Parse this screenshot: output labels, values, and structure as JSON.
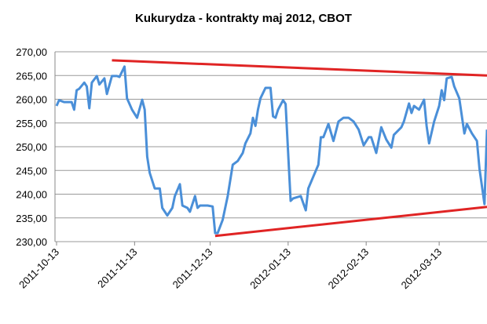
{
  "chart_data": {
    "type": "line",
    "title": "Kukurydza - kontrakty maj 2012, CBOT",
    "x": [
      "2011-10-13",
      "2011-10-14",
      "2011-10-16",
      "2011-10-19",
      "2011-10-20",
      "2011-10-21",
      "2011-10-22",
      "2011-10-24",
      "2011-10-25",
      "2011-10-26",
      "2011-10-27",
      "2011-10-29",
      "2011-10-30",
      "2011-11-01",
      "2011-11-02",
      "2011-11-04",
      "2011-11-06",
      "2011-11-07",
      "2011-11-09",
      "2011-11-10",
      "2011-11-12",
      "2011-11-14",
      "2011-11-16",
      "2011-11-17",
      "2011-11-18",
      "2011-11-19",
      "2011-11-21",
      "2011-11-23",
      "2011-11-24",
      "2011-11-26",
      "2011-11-28",
      "2011-11-29",
      "2011-12-01",
      "2011-12-02",
      "2011-12-04",
      "2011-12-05",
      "2011-12-07",
      "2011-12-08",
      "2011-12-09",
      "2011-12-11",
      "2011-12-12",
      "2011-12-14",
      "2011-12-15",
      "2011-12-16",
      "2011-12-18",
      "2011-12-20",
      "2011-12-22",
      "2011-12-24",
      "2011-12-26",
      "2011-12-27",
      "2011-12-29",
      "2011-12-30",
      "2011-12-31",
      "2012-01-01",
      "2012-01-02",
      "2012-01-04",
      "2012-01-06",
      "2012-01-07",
      "2012-01-08",
      "2012-01-09",
      "2012-01-11",
      "2012-01-12",
      "2012-01-14",
      "2012-01-15",
      "2012-01-18",
      "2012-01-20",
      "2012-01-21",
      "2012-01-23",
      "2012-01-25",
      "2012-01-26",
      "2012-01-27",
      "2012-01-29",
      "2012-01-31",
      "2012-02-02",
      "2012-02-04",
      "2012-02-06",
      "2012-02-08",
      "2012-02-10",
      "2012-02-12",
      "2012-02-14",
      "2012-02-15",
      "2012-02-17",
      "2012-02-19",
      "2012-02-21",
      "2012-02-23",
      "2012-02-24",
      "2012-02-27",
      "2012-02-28",
      "2012-03-01",
      "2012-03-02",
      "2012-03-03",
      "2012-03-05",
      "2012-03-07",
      "2012-03-08",
      "2012-03-09",
      "2012-03-11",
      "2012-03-13",
      "2012-03-14",
      "2012-03-15",
      "2012-03-16",
      "2012-03-18",
      "2012-03-19",
      "2012-03-21",
      "2012-03-23",
      "2012-03-24",
      "2012-03-26",
      "2012-03-28",
      "2012-03-29",
      "2012-03-31",
      "2012-04-01"
    ],
    "series": [
      {
        "color": "#4a8fd8",
        "values": [
          258.6,
          259.8,
          259.4,
          259.4,
          257.8,
          261.9,
          262.2,
          263.5,
          262.7,
          258.1,
          263.5,
          264.9,
          263.1,
          264.4,
          261.1,
          264.9,
          264.9,
          264.7,
          266.9,
          260.2,
          257.8,
          256.1,
          259.9,
          257.8,
          247.9,
          244.5,
          241.2,
          241.2,
          237.1,
          235.5,
          237.1,
          239.6,
          242.1,
          237.6,
          237.1,
          236.3,
          239.6,
          237.1,
          237.6,
          237.6,
          237.6,
          237.4,
          231.8,
          231.8,
          234.6,
          239.6,
          246.2,
          247.0,
          248.7,
          250.7,
          252.8,
          256.1,
          254.4,
          257.8,
          260.2,
          262.4,
          262.4,
          256.4,
          256.1,
          257.8,
          259.8,
          259.0,
          238.6,
          239.1,
          239.6,
          236.6,
          241.2,
          243.7,
          246.2,
          252.0,
          252.0,
          254.8,
          251.2,
          255.3,
          256.1,
          256.1,
          255.3,
          253.6,
          250.3,
          252.0,
          252.0,
          248.7,
          254.1,
          251.5,
          249.8,
          252.5,
          254.1,
          255.3,
          259.1,
          257.1,
          258.6,
          257.8,
          259.9,
          254.4,
          250.7,
          255.3,
          258.6,
          261.9,
          259.8,
          264.4,
          264.7,
          262.7,
          260.2,
          252.8,
          254.8,
          252.8,
          251.2,
          245.4,
          237.9,
          253.6
        ]
      }
    ],
    "trendlines": [
      {
        "color": "#e02424",
        "x": [
          "2011-11-04",
          "2012-04-01"
        ],
        "values": [
          268.2,
          265.0
        ]
      },
      {
        "color": "#e02424",
        "x": [
          "2011-12-15",
          "2012-04-01"
        ],
        "values": [
          231.2,
          237.3
        ]
      }
    ],
    "xlim": [
      "2011-10-13",
      "2012-04-01"
    ],
    "xticks": [
      "2011-10-13",
      "2011-11-13",
      "2011-12-13",
      "2012-01-13",
      "2012-02-13",
      "2012-03-13"
    ],
    "ylim": [
      230,
      270
    ],
    "yticks": [
      {
        "value": 230,
        "label": "230,00"
      },
      {
        "value": 235,
        "label": "235,00"
      },
      {
        "value": 240,
        "label": "240,00"
      },
      {
        "value": 245,
        "label": "245,00"
      },
      {
        "value": 250,
        "label": "250,00"
      },
      {
        "value": 255,
        "label": "255,00"
      },
      {
        "value": 260,
        "label": "260,00"
      },
      {
        "value": 265,
        "label": "265,00"
      },
      {
        "value": 270,
        "label": "270,00"
      }
    ],
    "grid": true
  }
}
